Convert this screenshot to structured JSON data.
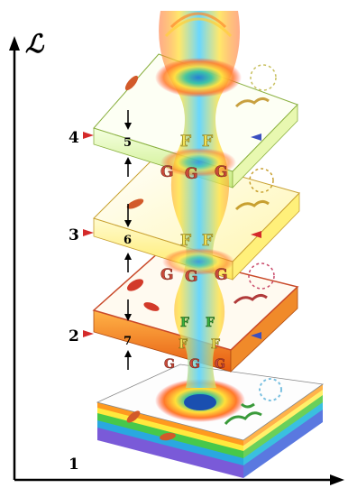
{
  "axis": {
    "y_symbol": "ℒ"
  },
  "levels": [
    {
      "marker": "1",
      "bar_number": ""
    },
    {
      "marker": "2",
      "bar_number": "7"
    },
    {
      "marker": "3",
      "bar_number": "6"
    },
    {
      "marker": "4",
      "bar_number": "5"
    }
  ],
  "beam_letters": {
    "top": [
      "F",
      "F"
    ],
    "upper": [
      "G",
      "G",
      "G"
    ],
    "middle": [
      "F",
      "F"
    ],
    "lower": [
      "G",
      "G",
      "G"
    ],
    "bottom": [
      "F",
      "F",
      "F",
      "F",
      "G",
      "G",
      "G"
    ]
  },
  "colors": {
    "axis": "#000000",
    "slab_white": "#ffffff",
    "slab_yellow": "#ffef6a",
    "slab_orange": "#f47a1c",
    "rainbow": [
      "#ff3b2f",
      "#ff9a1f",
      "#ffe93d",
      "#47c84a",
      "#2aa8e0",
      "#3a5fd0",
      "#8a3ec8"
    ],
    "marker_red": "#d42a2a",
    "marker_blue": "#3a4fc0"
  }
}
